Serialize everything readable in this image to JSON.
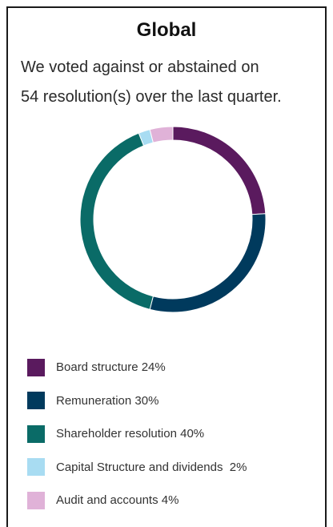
{
  "chart_data": {
    "type": "pie",
    "title": "Global",
    "subtitle": [
      "We voted against or abstained on",
      "54 resolution(s) over the last quarter."
    ],
    "legend_position": "bottom",
    "series": [
      {
        "name": "Board structure 24%",
        "value": 24,
        "color": "#5a1a5e"
      },
      {
        "name": "Remuneration 30%",
        "value": 30,
        "color": "#003a5d"
      },
      {
        "name": "Shareholder resolution 40%",
        "value": 40,
        "color": "#0a6b67"
      },
      {
        "name": "Capital Structure and dividends  2%",
        "value": 2,
        "color": "#a8dcf2"
      },
      {
        "name": "Audit and accounts 4%",
        "value": 4,
        "color": "#e0b2d8"
      }
    ]
  }
}
